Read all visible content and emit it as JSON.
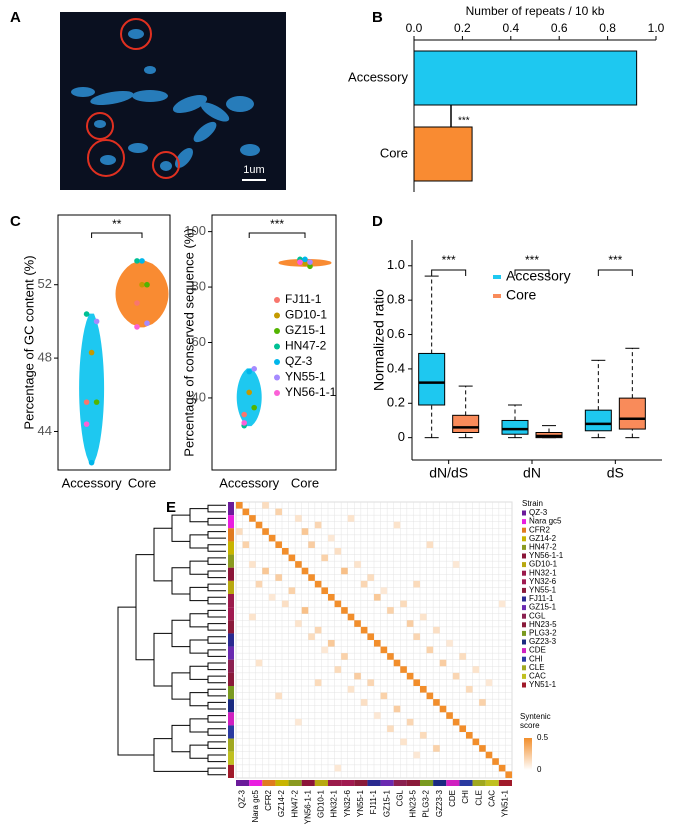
{
  "panel_a": {
    "label": "A",
    "scale_bar": "1um"
  },
  "chart_data": [
    {
      "label": "B",
      "type": "bar",
      "orientation": "horizontal",
      "xlabel": "Number of repeats / 10 kb",
      "categories": [
        "Accessory",
        "Core"
      ],
      "values": [
        0.92,
        0.24
      ],
      "colors": [
        "#1ec8f0",
        "#f98b32"
      ],
      "xlim": [
        0,
        1
      ],
      "xticks": [
        {
          "value": 0,
          "label": "0.0"
        },
        {
          "value": 0.2,
          "label": "0.2"
        },
        {
          "value": 0.4,
          "label": "0.4"
        },
        {
          "value": 0.6,
          "label": "0.6"
        },
        {
          "value": 0.8,
          "label": "0.8"
        },
        {
          "value": 1,
          "label": "1.0"
        }
      ],
      "annotation": "***"
    },
    {
      "label": "C",
      "type": "violin",
      "ylabel": "Percentage of GC content (%)",
      "categories": [
        "Accessory",
        "Core"
      ],
      "colors": [
        "#1ec8f0",
        "#f98b32"
      ],
      "ylim": [
        41.9,
        55.8
      ],
      "yticks": [
        44,
        48,
        52
      ],
      "significance": "**",
      "series": [
        {
          "color": "#f8766d",
          "values": [
            45.6,
            51.0
          ]
        },
        {
          "color": "#c49a00",
          "values": [
            48.3,
            52.0
          ]
        },
        {
          "color": "#53b400",
          "values": [
            45.6,
            52.0
          ]
        },
        {
          "color": "#00c094",
          "values": [
            50.4,
            53.3
          ]
        },
        {
          "color": "#00b6eb",
          "values": [
            42.3,
            53.3
          ]
        },
        {
          "color": "#a58aff",
          "values": [
            50.0,
            49.9
          ]
        },
        {
          "color": "#fb61d7",
          "values": [
            44.4,
            49.7
          ]
        }
      ]
    },
    {
      "type": "violin",
      "ylabel": "Percentage of conserved sequence (%)",
      "categories": [
        "Accessory",
        "Core"
      ],
      "colors": [
        "#1ec8f0",
        "#f98b32"
      ],
      "ylim": [
        14,
        106
      ],
      "yticks": [
        40,
        60,
        80,
        100
      ],
      "significance": "***",
      "series": [
        {
          "name": "FJ11-1",
          "color": "#f8766d",
          "values": [
            34,
            89
          ]
        },
        {
          "name": "GD10-1",
          "color": "#c49a00",
          "values": [
            42,
            88.5
          ]
        },
        {
          "name": "GZ15-1",
          "color": "#53b400",
          "values": [
            36.5,
            87.5
          ]
        },
        {
          "name": "HN47-2",
          "color": "#00c094",
          "values": [
            30,
            90
          ]
        },
        {
          "name": "QZ-3",
          "color": "#00b6eb",
          "values": [
            49.5,
            90
          ]
        },
        {
          "name": "YN55-1",
          "color": "#a58aff",
          "values": [
            50.5,
            89
          ]
        },
        {
          "name": "YN56-1-1",
          "color": "#fb61d7",
          "values": [
            31,
            89
          ]
        }
      ]
    },
    {
      "label": "D",
      "type": "box",
      "ylabel": "Normalized ratio",
      "categories": [
        "dN/dS",
        "dN",
        "dS"
      ],
      "significance": [
        "***",
        "***",
        "***"
      ],
      "ylim": [
        -0.13,
        1.15
      ],
      "yticks": [
        0,
        0.2,
        0.4,
        0.6,
        0.8,
        {
          "value": 1,
          "label": "1.0"
        }
      ],
      "series": [
        {
          "name": "Accessory",
          "color": "#1ec8f0",
          "values": [
            {
              "min": 0,
              "q1": 0.19,
              "median": 0.32,
              "q3": 0.49,
              "max": 0.94
            },
            {
              "min": 0,
              "q1": 0.02,
              "median": 0.05,
              "q3": 0.1,
              "max": 0.19
            },
            {
              "min": 0,
              "q1": 0.04,
              "median": 0.08,
              "q3": 0.16,
              "max": 0.45
            }
          ]
        },
        {
          "name": "Core",
          "color": "#f98b5a",
          "values": [
            {
              "min": 0,
              "q1": 0.03,
              "median": 0.06,
              "q3": 0.13,
              "max": 0.3
            },
            {
              "min": 0,
              "q1": 0.0,
              "median": 0.01,
              "q3": 0.03,
              "max": 0.07
            },
            {
              "min": 0,
              "q1": 0.05,
              "median": 0.11,
              "q3": 0.23,
              "max": 0.52
            }
          ]
        }
      ]
    },
    {
      "label": "E",
      "type": "heatmap",
      "legend_title": "Strain",
      "colorbar_title": "Syntenic score",
      "clim": [
        0,
        0.5
      ],
      "colorbar_ticks": [
        0,
        0.5
      ],
      "color": "#f28e2b",
      "strains": [
        {
          "name": "QZ-3",
          "color": "#6a1b9a"
        },
        {
          "name": "Nara gc5",
          "color": "#e91ee0"
        },
        {
          "name": "CFR2",
          "color": "#e07b20"
        },
        {
          "name": "GZ14-2",
          "color": "#c8b400"
        },
        {
          "name": "HN47-2",
          "color": "#8a9a20"
        },
        {
          "name": "YN56-1-1",
          "color": "#8b1538"
        },
        {
          "name": "GD10-1",
          "color": "#b8a810"
        },
        {
          "name": "HN32-1",
          "color": "#9b1b4b"
        },
        {
          "name": "YN32-6",
          "color": "#a01a50"
        },
        {
          "name": "YN55-1",
          "color": "#8a1a3a"
        },
        {
          "name": "FJ11-1",
          "color": "#2a2a90"
        },
        {
          "name": "GZ15-1",
          "color": "#6a2ab0"
        },
        {
          "name": "CGL",
          "color": "#8b2050"
        },
        {
          "name": "HN23-5",
          "color": "#8a1a3a"
        },
        {
          "name": "PLG3-2",
          "color": "#7a9a20"
        },
        {
          "name": "GZ23-3",
          "color": "#1a2a80"
        },
        {
          "name": "CDE",
          "color": "#d020c0"
        },
        {
          "name": "CHI",
          "color": "#2a3aa0"
        },
        {
          "name": "CLE",
          "color": "#a0a820"
        },
        {
          "name": "CAC",
          "color": "#c0c020"
        },
        {
          "name": "YN51-1",
          "color": "#a01a2a"
        }
      ],
      "diagonal": [
        0.5,
        0.5,
        0.5,
        0.5,
        0.5,
        0.5,
        0.5,
        0.5,
        0.5,
        0.5,
        0.5,
        0.5,
        0.5,
        0.5,
        0.5,
        0.5,
        0.5,
        0.5,
        0.5,
        0.5,
        0.5,
        0.5,
        0.5,
        0.5,
        0.5,
        0.5,
        0.5,
        0.5,
        0.5,
        0.5,
        0.5,
        0.5,
        0.5,
        0.5,
        0.5,
        0.5,
        0.5,
        0.5,
        0.5,
        0.5,
        0.5,
        0.5
      ],
      "cells": [
        {
          "row": 0,
          "col": 4,
          "value": 0.15
        },
        {
          "row": 1,
          "col": 6,
          "value": 0.2
        },
        {
          "row": 2,
          "col": 9,
          "value": 0.12
        },
        {
          "row": 3,
          "col": 12,
          "value": 0.18
        },
        {
          "row": 4,
          "col": 10,
          "value": 0.25
        },
        {
          "row": 5,
          "col": 14,
          "value": 0.1
        },
        {
          "row": 6,
          "col": 11,
          "value": 0.22
        },
        {
          "row": 7,
          "col": 15,
          "value": 0.14
        },
        {
          "row": 8,
          "col": 13,
          "value": 0.2
        },
        {
          "row": 9,
          "col": 18,
          "value": 0.12
        },
        {
          "row": 10,
          "col": 16,
          "value": 0.28
        },
        {
          "row": 11,
          "col": 20,
          "value": 0.15
        },
        {
          "row": 12,
          "col": 19,
          "value": 0.18
        },
        {
          "row": 13,
          "col": 22,
          "value": 0.1
        },
        {
          "row": 14,
          "col": 21,
          "value": 0.24
        },
        {
          "row": 15,
          "col": 25,
          "value": 0.16
        },
        {
          "row": 16,
          "col": 23,
          "value": 0.2
        },
        {
          "row": 17,
          "col": 28,
          "value": 0.12
        },
        {
          "row": 18,
          "col": 26,
          "value": 0.22
        },
        {
          "row": 19,
          "col": 30,
          "value": 0.14
        },
        {
          "row": 20,
          "col": 27,
          "value": 0.18
        },
        {
          "row": 21,
          "col": 32,
          "value": 0.1
        },
        {
          "row": 22,
          "col": 29,
          "value": 0.2
        },
        {
          "row": 23,
          "col": 34,
          "value": 0.15
        },
        {
          "row": 24,
          "col": 31,
          "value": 0.22
        },
        {
          "row": 25,
          "col": 36,
          "value": 0.12
        },
        {
          "row": 26,
          "col": 33,
          "value": 0.18
        },
        {
          "row": 27,
          "col": 38,
          "value": 0.1
        },
        {
          "row": 28,
          "col": 35,
          "value": 0.16
        },
        {
          "row": 30,
          "col": 37,
          "value": 0.2
        },
        {
          "row": 3,
          "col": 24,
          "value": 0.12
        },
        {
          "row": 6,
          "col": 29,
          "value": 0.14
        },
        {
          "row": 9,
          "col": 33,
          "value": 0.1
        },
        {
          "row": 12,
          "col": 27,
          "value": 0.16
        },
        {
          "row": 2,
          "col": 17,
          "value": 0.12
        },
        {
          "row": 15,
          "col": 40,
          "value": 0.1
        }
      ]
    }
  ]
}
